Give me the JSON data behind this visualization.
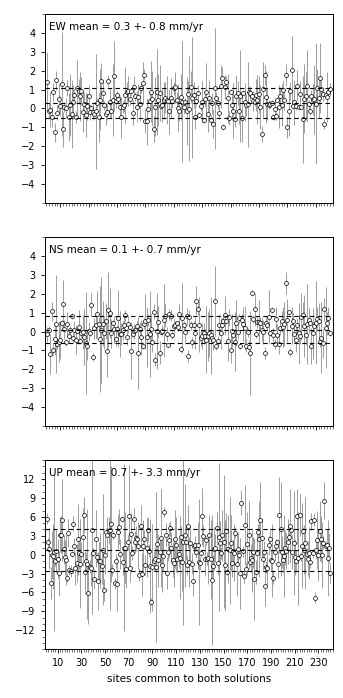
{
  "panels": [
    {
      "label": "EW mean = 0.3 +- 0.8 mm/yr",
      "mean": 0.3,
      "std": 0.8,
      "ylim": [
        -5,
        5
      ],
      "yticks": [
        -4,
        -3,
        -2,
        -1,
        0,
        1,
        2,
        3,
        4
      ],
      "n_points": 200,
      "x_max": 200,
      "xticks": [
        10,
        30,
        50,
        70,
        90,
        110,
        130,
        150,
        170,
        190
      ],
      "err_scale": 0.9,
      "seed": 1
    },
    {
      "label": "NS mean = 0.1 +- 0.7 mm/yr",
      "mean": 0.1,
      "std": 0.7,
      "ylim": [
        -5,
        5
      ],
      "yticks": [
        -4,
        -3,
        -2,
        -1,
        0,
        1,
        2,
        3,
        4
      ],
      "n_points": 200,
      "x_max": 200,
      "xticks": [
        10,
        30,
        50,
        70,
        90,
        110,
        130,
        150,
        170,
        190
      ],
      "err_scale": 0.9,
      "seed": 2
    },
    {
      "label": "UP mean = 0.7 +- 3.3 mm/yr",
      "mean": 0.7,
      "std": 3.3,
      "ylim": [
        -15,
        15
      ],
      "yticks": [
        -12,
        -9,
        -6,
        -3,
        0,
        3,
        6,
        9,
        12
      ],
      "n_points": 240,
      "x_max": 240,
      "xticks": [
        10,
        30,
        50,
        70,
        90,
        110,
        130,
        150,
        170,
        190,
        210,
        230
      ],
      "err_scale": 0.9,
      "seed": 3
    }
  ],
  "xlabel": "sites common to both solutions",
  "background_color": "#ffffff",
  "marker_facecolor": "white",
  "marker_edgecolor": "black",
  "errorbar_color": "#777777",
  "dashed_color": "black",
  "label_fontsize": 7.5,
  "tick_fontsize": 7,
  "xlabel_fontsize": 7.5
}
